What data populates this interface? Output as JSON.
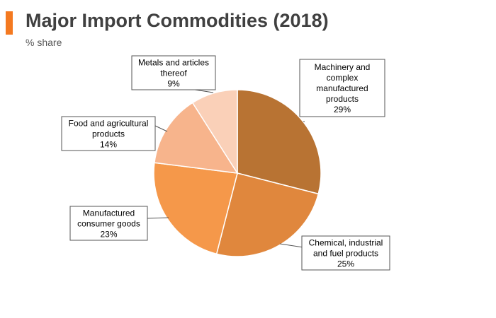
{
  "header": {
    "title": "Major Import Commodities (2018)",
    "subtitle": "% share",
    "accent_color": "#f47920"
  },
  "chart_data": {
    "type": "pie",
    "title": "Major Import Commodities (2018)",
    "unit": "% share",
    "start_angle": "12 o'clock",
    "direction": "clockwise",
    "slices": [
      {
        "label": "Machinery and complex manufactured products",
        "value": 29,
        "value_label": "29%",
        "color": "#b87333"
      },
      {
        "label": "Chemical, industrial and fuel products",
        "value": 25,
        "value_label": "25%",
        "color": "#e0873d"
      },
      {
        "label": "Manufactured consumer goods",
        "value": 23,
        "value_label": "23%",
        "color": "#f5984a"
      },
      {
        "label": "Food and agricultural products",
        "value": 14,
        "value_label": "14%",
        "color": "#f7b48c"
      },
      {
        "label": "Metals and articles thereof",
        "value": 9,
        "value_label": "9%",
        "color": "#fad0b8"
      }
    ]
  }
}
